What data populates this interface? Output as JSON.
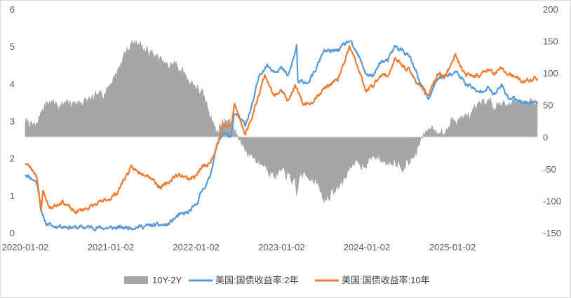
{
  "chart_data": {
    "type": "line",
    "title": "",
    "xlabel": "",
    "ylabel": "",
    "x_ticks": [
      "2020-01-02",
      "2021-01-02",
      "2022-01-02",
      "2023-01-02",
      "2024-01-02",
      "2025-01-02"
    ],
    "x_range": [
      "2020-01-02",
      "2025-12-31"
    ],
    "ylim_left": [
      0,
      6
    ],
    "y_ticks_left": [
      "0",
      "1",
      "2",
      "3",
      "4",
      "5",
      "6"
    ],
    "ylim_right": [
      -150,
      200
    ],
    "y_ticks_right": [
      "-150",
      "-100",
      "-50",
      "0",
      "50",
      "100",
      "150",
      "200"
    ],
    "grid": false,
    "legend_position": "bottom",
    "colors": {
      "spread": "#a6a6a6",
      "y2": "#5b9bd5",
      "y10": "#ed7d31"
    },
    "series": [
      {
        "name": "10Y-2Y",
        "kind": "area",
        "axis": "right",
        "x": [
          "2020-01-02",
          "2020-02-15",
          "2020-03-01",
          "2020-03-20",
          "2020-04-15",
          "2020-06-01",
          "2020-07-15",
          "2020-09-01",
          "2020-10-15",
          "2020-11-15",
          "2020-12-15",
          "2021-01-02",
          "2021-02-01",
          "2021-03-01",
          "2021-03-31",
          "2021-04-30",
          "2021-05-31",
          "2021-06-30",
          "2021-07-31",
          "2021-08-31",
          "2021-09-30",
          "2021-10-31",
          "2021-11-30",
          "2021-12-31",
          "2022-01-31",
          "2022-02-28",
          "2022-03-15",
          "2022-03-31",
          "2022-04-15",
          "2022-05-15",
          "2022-06-15",
          "2022-07-05",
          "2022-07-31",
          "2022-08-31",
          "2022-09-30",
          "2022-10-31",
          "2022-11-30",
          "2022-12-31",
          "2023-01-31",
          "2023-02-28",
          "2023-03-08",
          "2023-03-20",
          "2023-04-30",
          "2023-05-31",
          "2023-06-30",
          "2023-07-15",
          "2023-08-31",
          "2023-09-30",
          "2023-10-31",
          "2023-11-30",
          "2023-12-31",
          "2024-01-31",
          "2024-02-29",
          "2024-03-31",
          "2024-04-30",
          "2024-05-31",
          "2024-06-30",
          "2024-07-31",
          "2024-08-15",
          "2024-09-06",
          "2024-09-30",
          "2024-10-31",
          "2024-11-30",
          "2024-12-31",
          "2025-01-31",
          "2025-02-28",
          "2025-03-31",
          "2025-04-30",
          "2025-05-31",
          "2025-06-30",
          "2025-07-31",
          "2025-08-31",
          "2025-09-30",
          "2025-10-31",
          "2025-12-31"
        ],
        "values": [
          25,
          15,
          30,
          50,
          55,
          50,
          52,
          55,
          58,
          65,
          75,
          85,
          105,
          130,
          145,
          150,
          135,
          130,
          120,
          110,
          115,
          105,
          90,
          80,
          65,
          40,
          25,
          5,
          20,
          30,
          10,
          -5,
          -20,
          -30,
          -40,
          -45,
          -60,
          -55,
          -60,
          -75,
          -95,
          -60,
          -60,
          -70,
          -100,
          -95,
          -80,
          -65,
          -40,
          -45,
          -40,
          -30,
          -35,
          -40,
          -35,
          -45,
          -40,
          -25,
          -10,
          5,
          15,
          10,
          5,
          25,
          30,
          30,
          35,
          50,
          55,
          50,
          55,
          50,
          55,
          55,
          55
        ]
      },
      {
        "name": "美国:国债收益率:2年",
        "kind": "line",
        "axis": "left",
        "x": [
          "2020-01-02",
          "2020-02-01",
          "2020-02-20",
          "2020-03-05",
          "2020-03-15",
          "2020-04-01",
          "2020-05-01",
          "2020-06-01",
          "2020-08-01",
          "2020-10-01",
          "2020-12-01",
          "2021-01-02",
          "2021-03-01",
          "2021-05-01",
          "2021-07-01",
          "2021-09-01",
          "2021-10-15",
          "2021-11-30",
          "2021-12-31",
          "2022-01-31",
          "2022-02-28",
          "2022-03-15",
          "2022-03-31",
          "2022-04-30",
          "2022-05-31",
          "2022-06-15",
          "2022-07-31",
          "2022-08-31",
          "2022-09-30",
          "2022-10-31",
          "2022-11-30",
          "2022-12-31",
          "2023-01-31",
          "2023-02-28",
          "2023-03-08",
          "2023-03-13",
          "2023-03-31",
          "2023-04-30",
          "2023-05-31",
          "2023-06-30",
          "2023-07-31",
          "2023-08-31",
          "2023-09-30",
          "2023-10-19",
          "2023-11-30",
          "2023-12-31",
          "2024-01-31",
          "2024-02-29",
          "2024-03-31",
          "2024-04-30",
          "2024-05-31",
          "2024-06-30",
          "2024-07-31",
          "2024-08-15",
          "2024-09-24",
          "2024-10-31",
          "2024-11-30",
          "2024-12-31",
          "2025-01-15",
          "2025-02-28",
          "2025-03-31",
          "2025-04-15",
          "2025-05-31",
          "2025-06-30",
          "2025-07-31",
          "2025-08-31",
          "2025-09-30",
          "2025-10-31",
          "2025-12-31"
        ],
        "values": [
          1.58,
          1.45,
          1.35,
          0.9,
          0.45,
          0.25,
          0.17,
          0.19,
          0.14,
          0.15,
          0.13,
          0.13,
          0.14,
          0.16,
          0.2,
          0.21,
          0.45,
          0.55,
          0.73,
          1.18,
          1.45,
          1.9,
          2.33,
          2.7,
          2.55,
          3.2,
          2.9,
          3.45,
          4.25,
          4.5,
          4.35,
          4.42,
          4.2,
          4.8,
          5.05,
          4.0,
          4.05,
          4.05,
          4.4,
          4.88,
          4.85,
          4.9,
          5.05,
          5.15,
          4.7,
          4.25,
          4.2,
          4.6,
          4.6,
          5.0,
          4.9,
          4.75,
          4.3,
          4.0,
          3.6,
          4.15,
          4.2,
          4.25,
          4.35,
          4.0,
          3.9,
          3.75,
          3.9,
          3.7,
          3.95,
          3.6,
          3.6,
          3.5,
          3.5
        ]
      },
      {
        "name": "美国:国债收益率:10年",
        "kind": "line",
        "axis": "left",
        "x": [
          "2020-01-02",
          "2020-02-01",
          "2020-02-20",
          "2020-03-09",
          "2020-03-18",
          "2020-04-15",
          "2020-06-08",
          "2020-07-31",
          "2020-09-30",
          "2020-11-30",
          "2020-12-31",
          "2021-01-31",
          "2021-02-28",
          "2021-03-31",
          "2021-04-30",
          "2021-05-31",
          "2021-06-30",
          "2021-07-31",
          "2021-08-31",
          "2021-09-30",
          "2021-10-31",
          "2021-11-30",
          "2021-12-31",
          "2022-01-31",
          "2022-02-28",
          "2022-03-31",
          "2022-04-30",
          "2022-05-31",
          "2022-06-15",
          "2022-07-31",
          "2022-08-31",
          "2022-09-30",
          "2022-10-24",
          "2022-11-30",
          "2022-12-31",
          "2023-01-31",
          "2023-02-28",
          "2023-03-31",
          "2023-04-30",
          "2023-05-31",
          "2023-06-30",
          "2023-07-31",
          "2023-08-31",
          "2023-09-30",
          "2023-10-19",
          "2023-11-30",
          "2023-12-27",
          "2024-01-31",
          "2024-02-29",
          "2024-03-31",
          "2024-04-30",
          "2024-05-31",
          "2024-06-30",
          "2024-07-31",
          "2024-08-31",
          "2024-09-16",
          "2024-10-31",
          "2024-11-30",
          "2024-12-31",
          "2025-01-14",
          "2025-02-28",
          "2025-03-31",
          "2025-04-30",
          "2025-05-31",
          "2025-06-30",
          "2025-07-31",
          "2025-08-31",
          "2025-09-30",
          "2025-10-31",
          "2025-12-31"
        ],
        "values": [
          1.88,
          1.7,
          1.55,
          0.55,
          1.15,
          0.65,
          0.85,
          0.55,
          0.68,
          0.84,
          0.93,
          1.09,
          1.45,
          1.74,
          1.63,
          1.6,
          1.45,
          1.22,
          1.3,
          1.52,
          1.55,
          1.45,
          1.52,
          1.78,
          1.83,
          2.35,
          2.9,
          2.85,
          3.45,
          2.65,
          3.15,
          3.8,
          4.25,
          3.65,
          3.88,
          3.5,
          3.95,
          3.48,
          3.45,
          3.65,
          3.85,
          4.0,
          4.1,
          4.6,
          5.0,
          4.35,
          3.8,
          3.95,
          4.25,
          4.2,
          4.65,
          4.5,
          4.36,
          4.05,
          3.9,
          3.62,
          4.28,
          4.18,
          4.57,
          4.8,
          4.2,
          4.25,
          4.2,
          4.4,
          4.25,
          4.4,
          4.25,
          4.15,
          4.05,
          4.15
        ]
      }
    ]
  }
}
